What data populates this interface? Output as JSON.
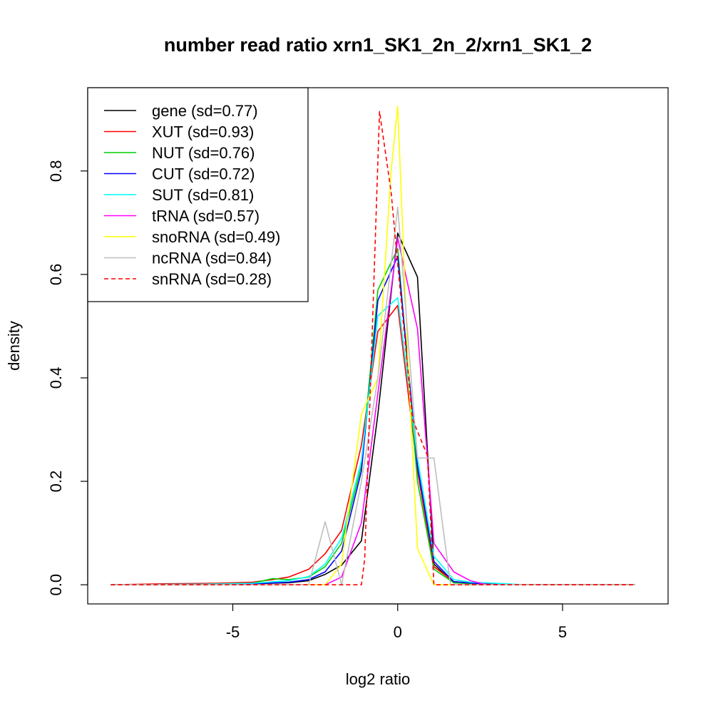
{
  "chart_data": {
    "type": "line",
    "title": "number read ratio xrn1_SK1_2n_2/xrn1_SK1_2",
    "xlabel": "log2 ratio",
    "ylabel": "density",
    "xlim": [
      -9.4,
      8.2
    ],
    "ylim": [
      -0.037,
      0.961
    ],
    "x_ticks": [
      -5,
      0,
      5
    ],
    "x_tick_labels": [
      "-5",
      "0",
      "5"
    ],
    "y_ticks": [
      0.0,
      0.2,
      0.4,
      0.6,
      0.8
    ],
    "y_tick_labels": [
      "0.0",
      "0.2",
      "0.4",
      "0.6",
      "0.8"
    ],
    "legend_position": "top-left",
    "series": [
      {
        "name": "gene (sd=0.77)",
        "color": "#000000",
        "dash": false,
        "points": [
          [
            -8.7,
            0
          ],
          [
            -7.0,
            0.001
          ],
          [
            -5.5,
            0.002
          ],
          [
            -4.4,
            0.002
          ],
          [
            -3.3,
            0.004
          ],
          [
            -2.7,
            0.008
          ],
          [
            -2.2,
            0.02
          ],
          [
            -1.7,
            0.038
          ],
          [
            -1.1,
            0.085
          ],
          [
            -0.6,
            0.33
          ],
          [
            0,
            0.68
          ],
          [
            0.6,
            0.595
          ],
          [
            1.1,
            0.04
          ],
          [
            1.7,
            0.004
          ],
          [
            2.7,
            0.001
          ],
          [
            3.8,
            0
          ],
          [
            7.2,
            0
          ]
        ]
      },
      {
        "name": "XUT (sd=0.93)",
        "color": "#ff0000",
        "dash": false,
        "points": [
          [
            -8.7,
            0
          ],
          [
            -7.0,
            0.002
          ],
          [
            -5.5,
            0.003
          ],
          [
            -4.4,
            0.005
          ],
          [
            -3.8,
            0.01
          ],
          [
            -3.3,
            0.015
          ],
          [
            -2.7,
            0.03
          ],
          [
            -2.2,
            0.06
          ],
          [
            -1.7,
            0.105
          ],
          [
            -1.1,
            0.27
          ],
          [
            -0.6,
            0.49
          ],
          [
            0,
            0.54
          ],
          [
            0.6,
            0.22
          ],
          [
            1.1,
            0.035
          ],
          [
            1.7,
            0.006
          ],
          [
            2.7,
            0.002
          ],
          [
            3.8,
            0
          ],
          [
            7.2,
            0
          ]
        ]
      },
      {
        "name": "NUT (sd=0.76)",
        "color": "#00cd00",
        "dash": false,
        "points": [
          [
            -8.7,
            0
          ],
          [
            -6.0,
            0.001
          ],
          [
            -4.4,
            0.003
          ],
          [
            -3.8,
            0.012
          ],
          [
            -3.3,
            0.01
          ],
          [
            -2.7,
            0.015
          ],
          [
            -2.2,
            0.035
          ],
          [
            -1.7,
            0.08
          ],
          [
            -1.1,
            0.23
          ],
          [
            -0.6,
            0.57
          ],
          [
            0,
            0.65
          ],
          [
            0.6,
            0.2
          ],
          [
            1.1,
            0.03
          ],
          [
            1.7,
            0.004
          ],
          [
            2.7,
            0.001
          ],
          [
            3.8,
            0
          ],
          [
            7.2,
            0
          ]
        ]
      },
      {
        "name": "CUT (sd=0.72)",
        "color": "#0000ff",
        "dash": false,
        "points": [
          [
            -8.7,
            0
          ],
          [
            -6.0,
            0.001
          ],
          [
            -4.4,
            0.002
          ],
          [
            -3.3,
            0.005
          ],
          [
            -2.7,
            0.01
          ],
          [
            -2.2,
            0.025
          ],
          [
            -1.7,
            0.065
          ],
          [
            -1.1,
            0.22
          ],
          [
            -0.6,
            0.55
          ],
          [
            0,
            0.635
          ],
          [
            0.6,
            0.23
          ],
          [
            1.1,
            0.045
          ],
          [
            1.7,
            0.006
          ],
          [
            2.7,
            0.001
          ],
          [
            3.8,
            0
          ],
          [
            7.2,
            0
          ]
        ]
      },
      {
        "name": "SUT (sd=0.81)",
        "color": "#00ffff",
        "dash": false,
        "points": [
          [
            -8.7,
            0
          ],
          [
            -6.0,
            0.001
          ],
          [
            -4.4,
            0.003
          ],
          [
            -3.3,
            0.008
          ],
          [
            -2.7,
            0.016
          ],
          [
            -2.2,
            0.04
          ],
          [
            -1.7,
            0.09
          ],
          [
            -1.1,
            0.24
          ],
          [
            -0.6,
            0.52
          ],
          [
            0,
            0.555
          ],
          [
            0.6,
            0.245
          ],
          [
            1.1,
            0.055
          ],
          [
            1.7,
            0.01
          ],
          [
            2.2,
            0.005
          ],
          [
            3.3,
            0.002
          ],
          [
            3.8,
            0
          ],
          [
            7.2,
            0
          ]
        ]
      },
      {
        "name": "tRNA (sd=0.57)",
        "color": "#ff00ff",
        "dash": false,
        "points": [
          [
            -8.7,
            0
          ],
          [
            -2.2,
            0
          ],
          [
            -1.7,
            0.015
          ],
          [
            -1.1,
            0.12
          ],
          [
            -0.6,
            0.37
          ],
          [
            0,
            0.67
          ],
          [
            0.6,
            0.495
          ],
          [
            1.1,
            0.08
          ],
          [
            1.7,
            0.025
          ],
          [
            2.2,
            0.008
          ],
          [
            2.7,
            0
          ],
          [
            7.2,
            0
          ]
        ]
      },
      {
        "name": "snoRNA (sd=0.49)",
        "color": "#ffff00",
        "dash": false,
        "points": [
          [
            -8.7,
            0
          ],
          [
            -2.2,
            0
          ],
          [
            -1.7,
            0.04
          ],
          [
            -1.1,
            0.33
          ],
          [
            -0.6,
            0.4
          ],
          [
            -0.2,
            0.8
          ],
          [
            0,
            0.925
          ],
          [
            0.3,
            0.45
          ],
          [
            0.6,
            0.07
          ],
          [
            1.1,
            0
          ],
          [
            7.2,
            0
          ]
        ]
      },
      {
        "name": "ncRNA (sd=0.84)",
        "color": "#bebebe",
        "dash": false,
        "points": [
          [
            -8.7,
            0
          ],
          [
            -2.7,
            0
          ],
          [
            -2.2,
            0.122
          ],
          [
            -1.7,
            0
          ],
          [
            -1.1,
            0.2
          ],
          [
            -0.6,
            0.4
          ],
          [
            0,
            0.73
          ],
          [
            0.6,
            0.245
          ],
          [
            1.1,
            0.245
          ],
          [
            1.6,
            0
          ],
          [
            7.2,
            0
          ]
        ]
      },
      {
        "name": "snRNA (sd=0.28)",
        "color": "#ff0000",
        "dash": true,
        "points": [
          [
            -8.7,
            0
          ],
          [
            -1.1,
            0
          ],
          [
            -1.0,
            0.05
          ],
          [
            -0.55,
            0.915
          ],
          [
            -0.2,
            0.76
          ],
          [
            0,
            0.62
          ],
          [
            0.45,
            0.32
          ],
          [
            0.9,
            0.25
          ],
          [
            1.1,
            0
          ],
          [
            7.2,
            0
          ]
        ]
      }
    ]
  }
}
